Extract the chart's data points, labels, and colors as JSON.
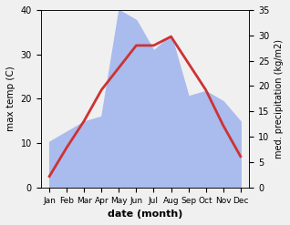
{
  "months": [
    "Jan",
    "Feb",
    "Mar",
    "Apr",
    "May",
    "Jun",
    "Jul",
    "Aug",
    "Sep",
    "Oct",
    "Nov",
    "Dec"
  ],
  "temperature": [
    2.5,
    9,
    15,
    22,
    27,
    32,
    32,
    34,
    28,
    22,
    14,
    7
  ],
  "precipitation": [
    9,
    11,
    13,
    14,
    35,
    33,
    27,
    30,
    18,
    19,
    17,
    13
  ],
  "temp_color": "#cc3333",
  "precip_color": "#aabbee",
  "temp_ylim": [
    0,
    40
  ],
  "precip_ylim": [
    0,
    35
  ],
  "temp_yticks": [
    0,
    10,
    20,
    30,
    40
  ],
  "precip_yticks": [
    0,
    5,
    10,
    15,
    20,
    25,
    30,
    35
  ],
  "ylabel_left": "max temp (C)",
  "ylabel_right": "med. precipitation (kg/m2)",
  "xlabel": "date (month)",
  "fig_width": 3.18,
  "fig_height": 2.47,
  "dpi": 100,
  "bg_color": "#f0f0f0",
  "line_width": 2.0
}
